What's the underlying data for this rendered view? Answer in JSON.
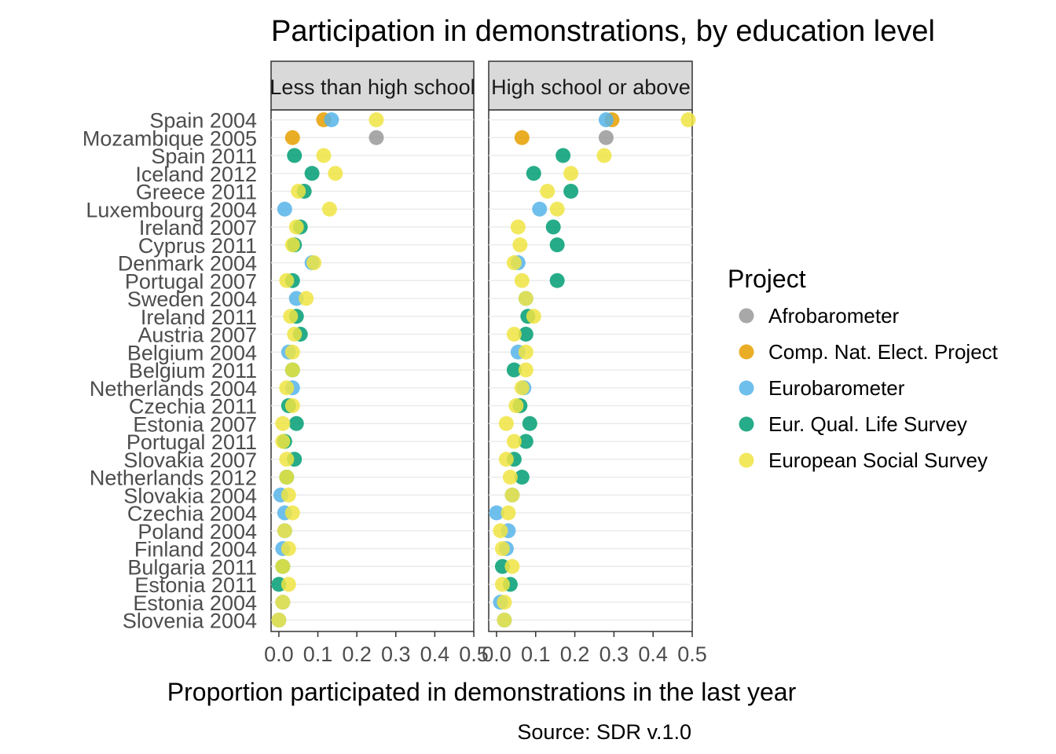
{
  "chart_data": {
    "type": "scatter",
    "title": "Participation in demonstrations, by education level",
    "xlabel": "Proportion participated in demonstrations in the last year",
    "caption": "Source: SDR v.1.0",
    "xlim": [
      -0.02,
      0.5
    ],
    "x_ticks": [
      "0.0",
      "0.1",
      "0.2",
      "0.3",
      "0.4",
      "0.5"
    ],
    "x_tick_values": [
      0,
      0.1,
      0.2,
      0.3,
      0.4,
      0.5
    ],
    "grid": true,
    "legend": {
      "title": "Project",
      "position": "right",
      "entries": [
        {
          "name": "Afrobarometer",
          "color": "#999999"
        },
        {
          "name": "Comp. Nat. Elect. Project",
          "color": "#E69F00"
        },
        {
          "name": "Eurobarometer",
          "color": "#56B4E9"
        },
        {
          "name": "Eur. Qual. Life Survey",
          "color": "#009E73"
        },
        {
          "name": "European Social Survey",
          "color": "#F0E442"
        }
      ]
    },
    "categories": [
      "Spain 2004",
      "Mozambique 2005",
      "Spain 2011",
      "Iceland 2012",
      "Greece 2011",
      "Luxembourg 2004",
      "Ireland 2007",
      "Cyprus 2011",
      "Denmark 2004",
      "Portugal 2007",
      "Sweden 2004",
      "Ireland 2011",
      "Austria 2007",
      "Belgium 2004",
      "Belgium 2011",
      "Netherlands 2004",
      "Czechia 2011",
      "Estonia 2007",
      "Portugal 2011",
      "Slovakia 2007",
      "Netherlands 2012",
      "Slovakia 2004",
      "Czechia 2004",
      "Poland 2004",
      "Finland 2004",
      "Bulgaria 2011",
      "Estonia 2011",
      "Estonia 2004",
      "Slovenia 2004"
    ],
    "panels": [
      {
        "label": "Less than high school",
        "points": [
          {
            "country": "Spain 2004",
            "project": "Comp. Nat. Elect. Project",
            "x": 0.115
          },
          {
            "country": "Spain 2004",
            "project": "Eurobarometer",
            "x": 0.135
          },
          {
            "country": "Spain 2004",
            "project": "European Social Survey",
            "x": 0.25
          },
          {
            "country": "Mozambique 2005",
            "project": "Afrobarometer",
            "x": 0.25
          },
          {
            "country": "Mozambique 2005",
            "project": "Comp. Nat. Elect. Project",
            "x": 0.035
          },
          {
            "country": "Spain 2011",
            "project": "Eur. Qual. Life Survey",
            "x": 0.04
          },
          {
            "country": "Spain 2011",
            "project": "European Social Survey",
            "x": 0.115
          },
          {
            "country": "Iceland 2012",
            "project": "Eur. Qual. Life Survey",
            "x": 0.085
          },
          {
            "country": "Iceland 2012",
            "project": "European Social Survey",
            "x": 0.145
          },
          {
            "country": "Greece 2011",
            "project": "Eur. Qual. Life Survey",
            "x": 0.065
          },
          {
            "country": "Greece 2011",
            "project": "European Social Survey",
            "x": 0.05
          },
          {
            "country": "Luxembourg 2004",
            "project": "Eurobarometer",
            "x": 0.015
          },
          {
            "country": "Luxembourg 2004",
            "project": "European Social Survey",
            "x": 0.13
          },
          {
            "country": "Ireland 2007",
            "project": "Eur. Qual. Life Survey",
            "x": 0.055
          },
          {
            "country": "Ireland 2007",
            "project": "European Social Survey",
            "x": 0.045
          },
          {
            "country": "Cyprus 2011",
            "project": "Eur. Qual. Life Survey",
            "x": 0.04
          },
          {
            "country": "Cyprus 2011",
            "project": "European Social Survey",
            "x": 0.035
          },
          {
            "country": "Denmark 2004",
            "project": "Eurobarometer",
            "x": 0.085
          },
          {
            "country": "Denmark 2004",
            "project": "European Social Survey",
            "x": 0.09
          },
          {
            "country": "Portugal 2007",
            "project": "Eur. Qual. Life Survey",
            "x": 0.035
          },
          {
            "country": "Portugal 2007",
            "project": "European Social Survey",
            "x": 0.02
          },
          {
            "country": "Sweden 2004",
            "project": "Eurobarometer",
            "x": 0.045
          },
          {
            "country": "Sweden 2004",
            "project": "European Social Survey",
            "x": 0.07
          },
          {
            "country": "Ireland 2011",
            "project": "Eur. Qual. Life Survey",
            "x": 0.045
          },
          {
            "country": "Ireland 2011",
            "project": "European Social Survey",
            "x": 0.03
          },
          {
            "country": "Austria 2007",
            "project": "Eur. Qual. Life Survey",
            "x": 0.055
          },
          {
            "country": "Austria 2007",
            "project": "European Social Survey",
            "x": 0.04
          },
          {
            "country": "Belgium 2004",
            "project": "Eurobarometer",
            "x": 0.025
          },
          {
            "country": "Belgium 2004",
            "project": "European Social Survey",
            "x": 0.035
          },
          {
            "country": "Belgium 2011",
            "project": "Eur. Qual. Life Survey",
            "x": 0.035
          },
          {
            "country": "Belgium 2011",
            "project": "European Social Survey",
            "x": 0.035
          },
          {
            "country": "Netherlands 2004",
            "project": "Eurobarometer",
            "x": 0.035
          },
          {
            "country": "Netherlands 2004",
            "project": "European Social Survey",
            "x": 0.02
          },
          {
            "country": "Czechia 2011",
            "project": "Eur. Qual. Life Survey",
            "x": 0.025
          },
          {
            "country": "Czechia 2011",
            "project": "European Social Survey",
            "x": 0.035
          },
          {
            "country": "Estonia 2007",
            "project": "Eur. Qual. Life Survey",
            "x": 0.045
          },
          {
            "country": "Estonia 2007",
            "project": "European Social Survey",
            "x": 0.01
          },
          {
            "country": "Portugal 2011",
            "project": "Eur. Qual. Life Survey",
            "x": 0.015
          },
          {
            "country": "Portugal 2011",
            "project": "European Social Survey",
            "x": 0.01
          },
          {
            "country": "Slovakia 2007",
            "project": "Eur. Qual. Life Survey",
            "x": 0.04
          },
          {
            "country": "Slovakia 2007",
            "project": "European Social Survey",
            "x": 0.02
          },
          {
            "country": "Netherlands 2012",
            "project": "Eur. Qual. Life Survey",
            "x": 0.02
          },
          {
            "country": "Netherlands 2012",
            "project": "European Social Survey",
            "x": 0.02
          },
          {
            "country": "Slovakia 2004",
            "project": "Eurobarometer",
            "x": 0.005
          },
          {
            "country": "Slovakia 2004",
            "project": "European Social Survey",
            "x": 0.025
          },
          {
            "country": "Czechia 2004",
            "project": "Eurobarometer",
            "x": 0.015
          },
          {
            "country": "Czechia 2004",
            "project": "European Social Survey",
            "x": 0.035
          },
          {
            "country": "Poland 2004",
            "project": "Eurobarometer",
            "x": 0.015
          },
          {
            "country": "Poland 2004",
            "project": "European Social Survey",
            "x": 0.015
          },
          {
            "country": "Finland 2004",
            "project": "Eurobarometer",
            "x": 0.01
          },
          {
            "country": "Finland 2004",
            "project": "European Social Survey",
            "x": 0.025
          },
          {
            "country": "Bulgaria 2011",
            "project": "Eur. Qual. Life Survey",
            "x": 0.01
          },
          {
            "country": "Bulgaria 2011",
            "project": "European Social Survey",
            "x": 0.01
          },
          {
            "country": "Estonia 2011",
            "project": "Eur. Qual. Life Survey",
            "x": 0.0
          },
          {
            "country": "Estonia 2011",
            "project": "European Social Survey",
            "x": 0.025
          },
          {
            "country": "Estonia 2004",
            "project": "Eurobarometer",
            "x": 0.01
          },
          {
            "country": "Estonia 2004",
            "project": "European Social Survey",
            "x": 0.01
          },
          {
            "country": "Slovenia 2004",
            "project": "Eurobarometer",
            "x": 0.0
          },
          {
            "country": "Slovenia 2004",
            "project": "European Social Survey",
            "x": 0.0
          }
        ]
      },
      {
        "label": "High school or above",
        "points": [
          {
            "country": "Spain 2004",
            "project": "Comp. Nat. Elect. Project",
            "x": 0.295
          },
          {
            "country": "Spain 2004",
            "project": "Eurobarometer",
            "x": 0.28
          },
          {
            "country": "Spain 2004",
            "project": "European Social Survey",
            "x": 0.49
          },
          {
            "country": "Mozambique 2005",
            "project": "Afrobarometer",
            "x": 0.28
          },
          {
            "country": "Mozambique 2005",
            "project": "Comp. Nat. Elect. Project",
            "x": 0.065
          },
          {
            "country": "Spain 2011",
            "project": "Eur. Qual. Life Survey",
            "x": 0.17
          },
          {
            "country": "Spain 2011",
            "project": "European Social Survey",
            "x": 0.275
          },
          {
            "country": "Iceland 2012",
            "project": "Eur. Qual. Life Survey",
            "x": 0.095
          },
          {
            "country": "Iceland 2012",
            "project": "European Social Survey",
            "x": 0.19
          },
          {
            "country": "Greece 2011",
            "project": "Eur. Qual. Life Survey",
            "x": 0.19
          },
          {
            "country": "Greece 2011",
            "project": "European Social Survey",
            "x": 0.13
          },
          {
            "country": "Luxembourg 2004",
            "project": "Eurobarometer",
            "x": 0.11
          },
          {
            "country": "Luxembourg 2004",
            "project": "European Social Survey",
            "x": 0.155
          },
          {
            "country": "Ireland 2007",
            "project": "Eur. Qual. Life Survey",
            "x": 0.145
          },
          {
            "country": "Ireland 2007",
            "project": "European Social Survey",
            "x": 0.055
          },
          {
            "country": "Cyprus 2011",
            "project": "Eur. Qual. Life Survey",
            "x": 0.155
          },
          {
            "country": "Cyprus 2011",
            "project": "European Social Survey",
            "x": 0.06
          },
          {
            "country": "Denmark 2004",
            "project": "Eurobarometer",
            "x": 0.055
          },
          {
            "country": "Denmark 2004",
            "project": "European Social Survey",
            "x": 0.045
          },
          {
            "country": "Portugal 2007",
            "project": "Eur. Qual. Life Survey",
            "x": 0.155
          },
          {
            "country": "Portugal 2007",
            "project": "European Social Survey",
            "x": 0.065
          },
          {
            "country": "Sweden 2004",
            "project": "Eurobarometer",
            "x": 0.075
          },
          {
            "country": "Sweden 2004",
            "project": "European Social Survey",
            "x": 0.075
          },
          {
            "country": "Ireland 2011",
            "project": "Eur. Qual. Life Survey",
            "x": 0.08
          },
          {
            "country": "Ireland 2011",
            "project": "European Social Survey",
            "x": 0.095
          },
          {
            "country": "Austria 2007",
            "project": "Eur. Qual. Life Survey",
            "x": 0.075
          },
          {
            "country": "Austria 2007",
            "project": "European Social Survey",
            "x": 0.045
          },
          {
            "country": "Belgium 2004",
            "project": "Eurobarometer",
            "x": 0.055
          },
          {
            "country": "Belgium 2004",
            "project": "European Social Survey",
            "x": 0.075
          },
          {
            "country": "Belgium 2011",
            "project": "Eur. Qual. Life Survey",
            "x": 0.045
          },
          {
            "country": "Belgium 2011",
            "project": "European Social Survey",
            "x": 0.075
          },
          {
            "country": "Netherlands 2004",
            "project": "Eurobarometer",
            "x": 0.07
          },
          {
            "country": "Netherlands 2004",
            "project": "European Social Survey",
            "x": 0.065
          },
          {
            "country": "Czechia 2011",
            "project": "Eur. Qual. Life Survey",
            "x": 0.06
          },
          {
            "country": "Czechia 2011",
            "project": "European Social Survey",
            "x": 0.05
          },
          {
            "country": "Estonia 2007",
            "project": "Eur. Qual. Life Survey",
            "x": 0.085
          },
          {
            "country": "Estonia 2007",
            "project": "European Social Survey",
            "x": 0.025
          },
          {
            "country": "Portugal 2011",
            "project": "Eur. Qual. Life Survey",
            "x": 0.075
          },
          {
            "country": "Portugal 2011",
            "project": "European Social Survey",
            "x": 0.045
          },
          {
            "country": "Slovakia 2007",
            "project": "Eur. Qual. Life Survey",
            "x": 0.045
          },
          {
            "country": "Slovakia 2007",
            "project": "European Social Survey",
            "x": 0.025
          },
          {
            "country": "Netherlands 2012",
            "project": "Eur. Qual. Life Survey",
            "x": 0.065
          },
          {
            "country": "Netherlands 2012",
            "project": "European Social Survey",
            "x": 0.035
          },
          {
            "country": "Slovakia 2004",
            "project": "Eurobarometer",
            "x": 0.04
          },
          {
            "country": "Slovakia 2004",
            "project": "European Social Survey",
            "x": 0.04
          },
          {
            "country": "Czechia 2004",
            "project": "Eurobarometer",
            "x": 0.0
          },
          {
            "country": "Czechia 2004",
            "project": "European Social Survey",
            "x": 0.03
          },
          {
            "country": "Poland 2004",
            "project": "Eurobarometer",
            "x": 0.03
          },
          {
            "country": "Poland 2004",
            "project": "European Social Survey",
            "x": 0.01
          },
          {
            "country": "Finland 2004",
            "project": "Eurobarometer",
            "x": 0.025
          },
          {
            "country": "Finland 2004",
            "project": "European Social Survey",
            "x": 0.015
          },
          {
            "country": "Bulgaria 2011",
            "project": "Eur. Qual. Life Survey",
            "x": 0.015
          },
          {
            "country": "Bulgaria 2011",
            "project": "European Social Survey",
            "x": 0.04
          },
          {
            "country": "Estonia 2011",
            "project": "Eur. Qual. Life Survey",
            "x": 0.035
          },
          {
            "country": "Estonia 2011",
            "project": "European Social Survey",
            "x": 0.015
          },
          {
            "country": "Estonia 2004",
            "project": "Eurobarometer",
            "x": 0.01
          },
          {
            "country": "Estonia 2004",
            "project": "European Social Survey",
            "x": 0.02
          },
          {
            "country": "Slovenia 2004",
            "project": "Eurobarometer",
            "x": 0.02
          },
          {
            "country": "Slovenia 2004",
            "project": "European Social Survey",
            "x": 0.02
          }
        ]
      }
    ]
  }
}
